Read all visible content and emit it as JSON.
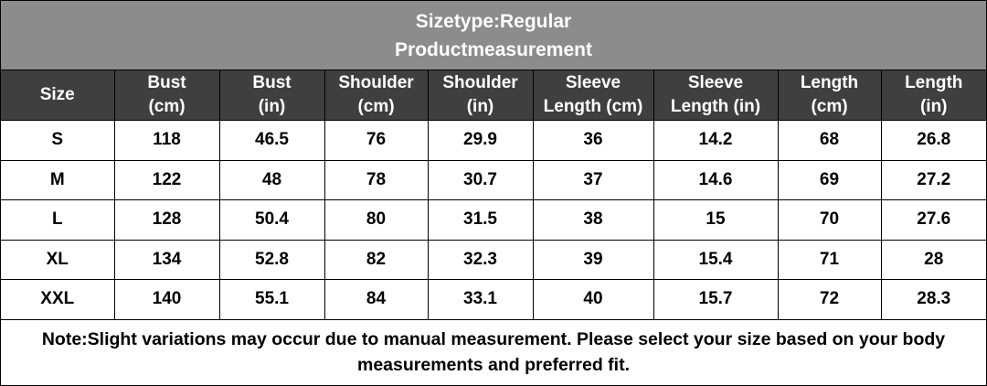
{
  "header": {
    "title_lines": [
      "Sizetype:Regular",
      "Productmeasurement"
    ]
  },
  "table": {
    "columns": [
      [
        "Size"
      ],
      [
        "Bust",
        "(cm)"
      ],
      [
        "Bust",
        "(in)"
      ],
      [
        "Shoulder",
        "(cm)"
      ],
      [
        "Shoulder",
        "(in)"
      ],
      [
        "Sleeve",
        "Length (cm)"
      ],
      [
        "Sleeve",
        "Length (in)"
      ],
      [
        "Length",
        "(cm)"
      ],
      [
        "Length",
        "(in)"
      ]
    ],
    "rows": [
      [
        "S",
        "118",
        "46.5",
        "76",
        "29.9",
        "36",
        "14.2",
        "68",
        "26.8"
      ],
      [
        "M",
        "122",
        "48",
        "78",
        "30.7",
        "37",
        "14.6",
        "69",
        "27.2"
      ],
      [
        "L",
        "128",
        "50.4",
        "80",
        "31.5",
        "38",
        "15",
        "70",
        "27.6"
      ],
      [
        "XL",
        "134",
        "52.8",
        "82",
        "32.3",
        "39",
        "15.4",
        "71",
        "28"
      ],
      [
        "XXL",
        "140",
        "55.1",
        "84",
        "33.1",
        "40",
        "15.7",
        "72",
        "28.3"
      ]
    ]
  },
  "note": "Note:Slight variations may occur due to manual measurement. Please select your size based on your body measurements and preferred fit."
}
